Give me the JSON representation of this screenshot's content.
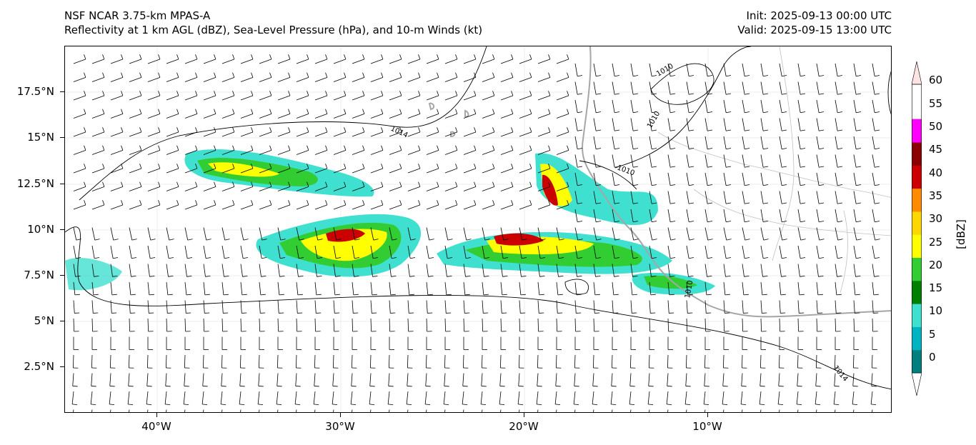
{
  "header": {
    "title_line1": "NSF NCAR 3.75-km MPAS-A",
    "title_line2": "Reflectivity at 1 km AGL (dBZ), Sea-Level Pressure (hPa), and 10-m Winds (kt)",
    "init": "Init: 2025-09-13 00:00 UTC",
    "valid": "Valid: 2025-09-15 13:00 UTC"
  },
  "map": {
    "lat_labels": [
      "17.5°N",
      "15°N",
      "12.5°N",
      "10°N",
      "7.5°N",
      "5°N",
      "2.5°N"
    ],
    "lon_labels": [
      "40°W",
      "30°W",
      "20°W",
      "10°W"
    ],
    "lat_range": [
      0,
      20
    ],
    "lon_range": [
      -45,
      0
    ],
    "isobar_labels": [
      "1014",
      "1010",
      "1010",
      "1010",
      "1010",
      "1014"
    ],
    "coastline_color": "#a6a6a6",
    "isobar_color": "#000000"
  },
  "colorbar": {
    "unit": "[dBZ]",
    "levels": [
      "0",
      "5",
      "10",
      "15",
      "20",
      "25",
      "30",
      "35",
      "40",
      "45",
      "50",
      "55",
      "60"
    ],
    "colors": [
      "#ffffff",
      "#007f7f",
      "#00b3c2",
      "#40e0d0",
      "#008000",
      "#32cd32",
      "#ffff00",
      "#ffd700",
      "#ff8c00",
      "#cc0000",
      "#8b0000",
      "#ff00ff",
      "#ffe4e1"
    ]
  }
}
